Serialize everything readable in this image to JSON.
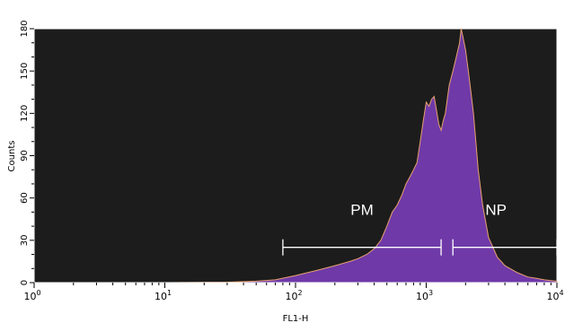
{
  "chart_data": {
    "type": "area",
    "xlabel": "FL1-H",
    "ylabel": "Counts",
    "x_scale": "log",
    "xlim": [
      1,
      10000
    ],
    "ylim": [
      0,
      180
    ],
    "x_ticks": [
      {
        "value": 1,
        "base": "10",
        "exp": "0"
      },
      {
        "value": 10,
        "base": "10",
        "exp": "1"
      },
      {
        "value": 100,
        "base": "10",
        "exp": "2"
      },
      {
        "value": 1000,
        "base": "10",
        "exp": "3"
      },
      {
        "value": 10000,
        "base": "10",
        "exp": "4"
      }
    ],
    "y_ticks": [
      "0",
      "30",
      "60",
      "90",
      "120",
      "150",
      "180"
    ],
    "background": "#1c1c1c",
    "fill_color": "#6f3aa8",
    "outline_color": "#e8a070",
    "histogram": [
      [
        1,
        0
      ],
      [
        10,
        0
      ],
      [
        30,
        0.3
      ],
      [
        50,
        1
      ],
      [
        70,
        2
      ],
      [
        100,
        5
      ],
      [
        150,
        9
      ],
      [
        200,
        12
      ],
      [
        260,
        15
      ],
      [
        300,
        17
      ],
      [
        350,
        20
      ],
      [
        400,
        24
      ],
      [
        450,
        30
      ],
      [
        500,
        40
      ],
      [
        550,
        50
      ],
      [
        600,
        55
      ],
      [
        650,
        62
      ],
      [
        700,
        70
      ],
      [
        750,
        75
      ],
      [
        800,
        80
      ],
      [
        850,
        85
      ],
      [
        900,
        100
      ],
      [
        950,
        115
      ],
      [
        1000,
        128
      ],
      [
        1050,
        125
      ],
      [
        1100,
        130
      ],
      [
        1150,
        132
      ],
      [
        1200,
        122
      ],
      [
        1250,
        112
      ],
      [
        1300,
        108
      ],
      [
        1350,
        115
      ],
      [
        1400,
        120
      ],
      [
        1500,
        140
      ],
      [
        1600,
        150
      ],
      [
        1700,
        160
      ],
      [
        1800,
        170
      ],
      [
        1850,
        180
      ],
      [
        1900,
        175
      ],
      [
        2000,
        165
      ],
      [
        2100,
        150
      ],
      [
        2200,
        135
      ],
      [
        2300,
        120
      ],
      [
        2500,
        80
      ],
      [
        2700,
        55
      ],
      [
        3000,
        32
      ],
      [
        3500,
        18
      ],
      [
        4000,
        12
      ],
      [
        5000,
        7
      ],
      [
        6000,
        4
      ],
      [
        7000,
        3
      ],
      [
        8000,
        2
      ],
      [
        10000,
        1
      ]
    ],
    "gates": [
      {
        "label": "PM",
        "x_start": 80,
        "x_end": 1300,
        "y": 25
      },
      {
        "label": "NP",
        "x_start": 1600,
        "x_end": 10000,
        "y": 25
      }
    ]
  }
}
